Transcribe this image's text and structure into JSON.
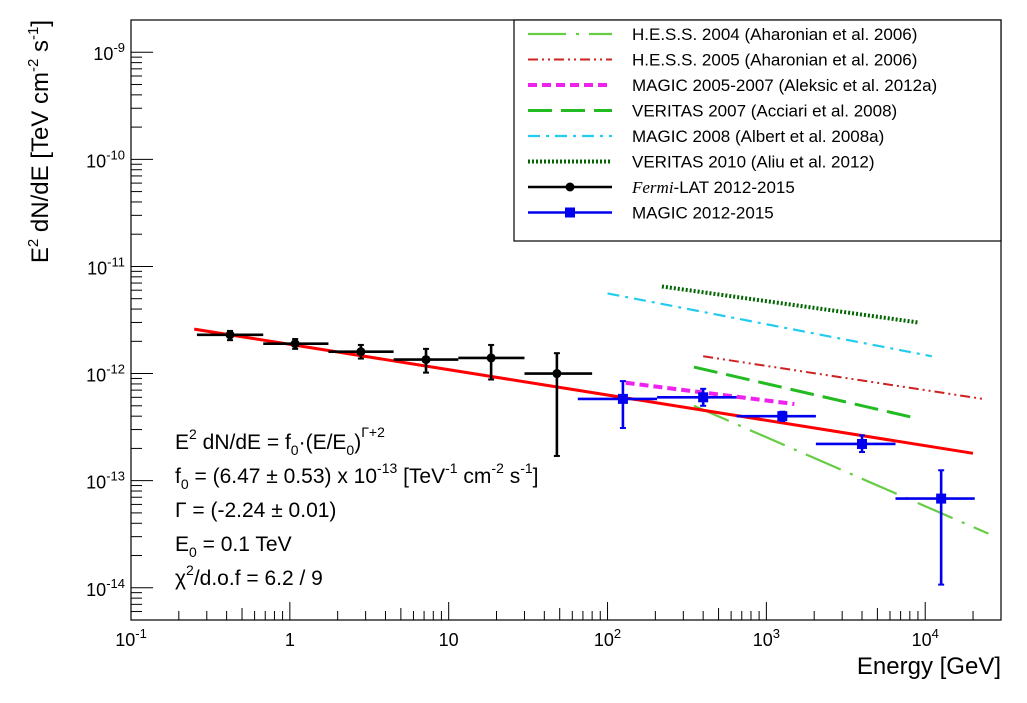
{
  "chart_data": {
    "type": "scatter",
    "x_scale": "log",
    "y_scale": "log",
    "xlim": [
      0.1,
      30000
    ],
    "ylim": [
      5e-15,
      2e-09
    ],
    "xlabel": "Energy [GeV]",
    "ylabel_parts": {
      "main": "E",
      "sup": "2",
      "rest": " dN/dE [TeV cm",
      "sup2": "-2",
      "mid": " s",
      "sup3": "-1",
      "end": "]"
    },
    "x_ticks": [
      {
        "value": 0.1,
        "base": "10",
        "exp": "-1"
      },
      {
        "value": 1,
        "label": "1"
      },
      {
        "value": 10,
        "label": "10"
      },
      {
        "value": 100,
        "base": "10",
        "exp": "2"
      },
      {
        "value": 1000,
        "base": "10",
        "exp": "3"
      },
      {
        "value": 10000,
        "base": "10",
        "exp": "4"
      }
    ],
    "y_ticks": [
      {
        "value": 1e-14,
        "base": "10",
        "exp": "-14"
      },
      {
        "value": 1e-13,
        "base": "10",
        "exp": "-13"
      },
      {
        "value": 1e-12,
        "base": "10",
        "exp": "-12"
      },
      {
        "value": 1e-11,
        "base": "10",
        "exp": "-11"
      },
      {
        "value": 1e-10,
        "base": "10",
        "exp": "-10"
      },
      {
        "value": 1e-09,
        "base": "10",
        "exp": "-9"
      }
    ],
    "grid": false,
    "legend_position": "top-right",
    "fit_line": {
      "color": "#ff0000",
      "x": [
        0.25,
        20000
      ],
      "y": [
        2.6e-12,
        1.8e-13
      ]
    },
    "series": [
      {
        "name": "H.E.S.S. 2004 (Aharonian et al. 2006)",
        "style": "dashdot-long",
        "color": "#66cc44",
        "x": [
          350,
          25000
        ],
        "y": [
          5e-13,
          3.2e-14
        ]
      },
      {
        "name": "H.E.S.S. 2005 (Aharonian et al. 2006)",
        "style": "dashdotdot",
        "color": "#cc2222",
        "x": [
          400,
          23000
        ],
        "y": [
          1.45e-12,
          5.8e-13
        ]
      },
      {
        "name": "MAGIC 2005-2007 (Aleksic et al. 2012a)",
        "style": "dash-short-thick",
        "color": "#ee22ee",
        "x": [
          130,
          1500
        ],
        "y": [
          8.2e-13,
          5.2e-13
        ]
      },
      {
        "name": "VERITAS 2007 (Acciari et al. 2008)",
        "style": "dash-long",
        "color": "#22bb22",
        "x": [
          350,
          9000
        ],
        "y": [
          1.15e-12,
          3.8e-13
        ]
      },
      {
        "name": "MAGIC 2008 (Albert et al. 2008a)",
        "style": "dashdot",
        "color": "#22ccee",
        "x": [
          100,
          11000
        ],
        "y": [
          5.6e-12,
          1.45e-12
        ]
      },
      {
        "name": "VERITAS 2010 (Aliu et al. 2012)",
        "style": "dotted",
        "color": "#006600",
        "x": [
          220,
          9000
        ],
        "y": [
          6.5e-12,
          3e-12
        ]
      },
      {
        "name": "Fermi-LAT 2012-2015",
        "name_italic": "Fermi",
        "name_rest": "-LAT 2012-2015",
        "style": "points-circle",
        "color": "#000000",
        "points": [
          {
            "x": 0.42,
            "xlo": 0.26,
            "xhi": 0.68,
            "y": 2.3e-12,
            "ylo": 2.05e-12,
            "yhi": 2.5e-12
          },
          {
            "x": 1.08,
            "xlo": 0.68,
            "xhi": 1.75,
            "y": 1.9e-12,
            "ylo": 1.7e-12,
            "yhi": 2.1e-12
          },
          {
            "x": 2.8,
            "xlo": 1.75,
            "xhi": 4.5,
            "y": 1.6e-12,
            "ylo": 1.38e-12,
            "yhi": 1.85e-12
          },
          {
            "x": 7.2,
            "xlo": 4.5,
            "xhi": 11.5,
            "y": 1.35e-12,
            "ylo": 1.02e-12,
            "yhi": 1.7e-12
          },
          {
            "x": 18.5,
            "xlo": 11.5,
            "xhi": 30,
            "y": 1.4e-12,
            "ylo": 8.8e-13,
            "yhi": 1.85e-12
          },
          {
            "x": 48,
            "xlo": 30,
            "xhi": 80,
            "y": 1e-12,
            "ylo": 1.7e-13,
            "yhi": 1.55e-12
          }
        ]
      },
      {
        "name": "MAGIC 2012-2015",
        "style": "points-square",
        "color": "#0000ee",
        "points": [
          {
            "x": 125,
            "xlo": 65,
            "xhi": 205,
            "y": 5.8e-13,
            "ylo": 3.1e-13,
            "yhi": 8.5e-13
          },
          {
            "x": 400,
            "xlo": 205,
            "xhi": 650,
            "y": 6e-13,
            "ylo": 5e-13,
            "yhi": 7.2e-13
          },
          {
            "x": 1260,
            "xlo": 650,
            "xhi": 2050,
            "y": 4e-13,
            "ylo": 3.6e-13,
            "yhi": 4.4e-13
          },
          {
            "x": 4000,
            "xlo": 2050,
            "xhi": 6500,
            "y": 2.2e-13,
            "ylo": 1.85e-13,
            "yhi": 2.65e-13
          },
          {
            "x": 12600,
            "xlo": 6500,
            "xhi": 20500,
            "y": 6.8e-14,
            "ylo": 1.07e-14,
            "yhi": 1.25e-13
          }
        ]
      }
    ]
  },
  "annotations": {
    "formula": {
      "a": "E",
      "a_sup": "2",
      "b": " dN/dE = f",
      "b_sub": "0",
      "c": "·(E/E",
      "c_sub": "0",
      "d": ")",
      "d_sup": "Γ+2"
    },
    "f0": {
      "a": "f",
      "a_sub": "0",
      "b": " = (6.47 ± 0.53) x 10",
      "b_sup": "-13",
      "c": " [TeV",
      "c_sup": "-1",
      "d": " cm",
      "d_sup": "-2",
      "e": " s",
      "e_sup": "-1",
      "f": "]"
    },
    "gamma": "Γ = (-2.24 ± 0.01)",
    "e0": {
      "a": "E",
      "a_sub": "0",
      "b": " = 0.1 TeV"
    },
    "chi2": {
      "a": "χ",
      "a_sup": "2",
      "b": "/d.o.f = 6.2 / 9"
    }
  }
}
